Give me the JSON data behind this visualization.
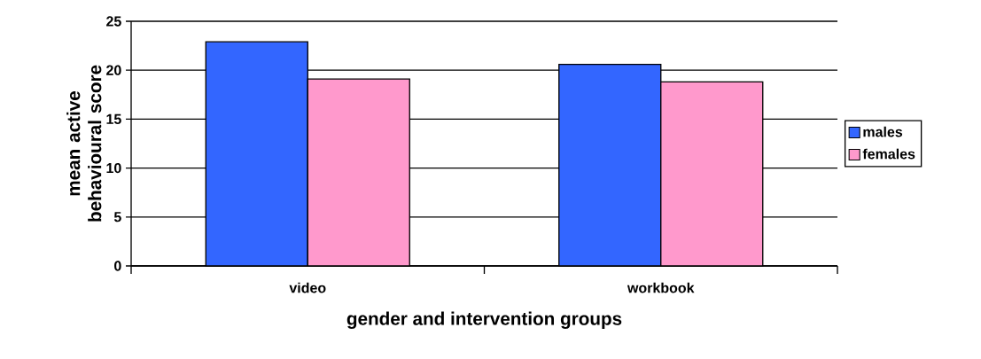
{
  "chart_data": {
    "type": "bar",
    "xlabel": "gender and intervention groups",
    "ylabel": "mean active behavioural score",
    "categories": [
      "video",
      "workbook"
    ],
    "series": [
      {
        "name": "males",
        "color": "#3366ff",
        "values": [
          22.9,
          20.6
        ]
      },
      {
        "name": "females",
        "color": "#ff99cc",
        "values": [
          19.1,
          18.8
        ]
      }
    ],
    "ylim": [
      0,
      25
    ],
    "yticks": [
      0,
      5,
      10,
      15,
      20,
      25
    ],
    "grid": "y",
    "legend": "right"
  }
}
